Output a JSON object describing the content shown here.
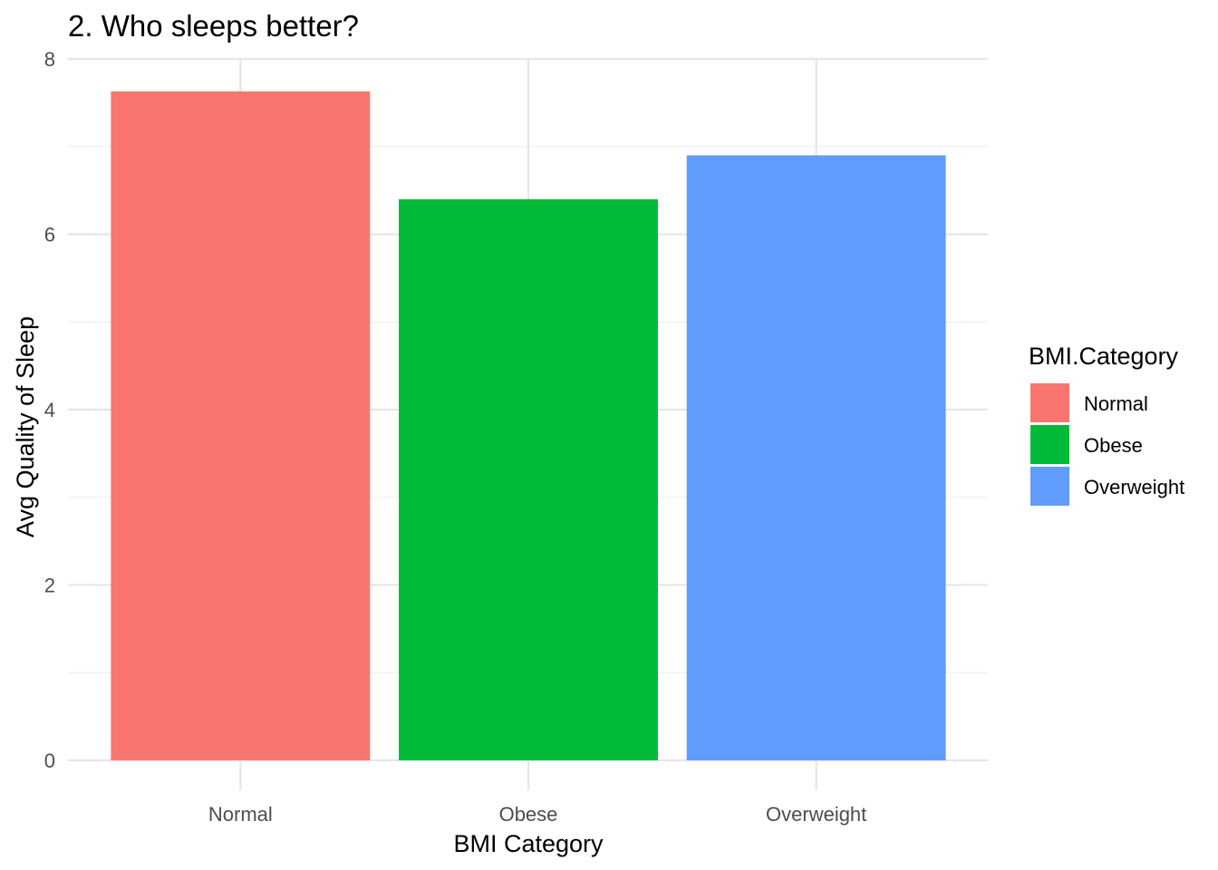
{
  "chart_data": {
    "type": "bar",
    "title": "2. Who sleeps better?",
    "xlabel": "BMI Category",
    "ylabel": "Avg Quality of Sleep",
    "categories": [
      "Normal",
      "Obese",
      "Overweight"
    ],
    "values": [
      7.63,
      6.4,
      6.9
    ],
    "colors": [
      "#F8766D",
      "#00BA38",
      "#619CFF"
    ],
    "ylim": [
      0,
      8
    ],
    "yticks": [
      "0",
      "2",
      "4",
      "6",
      "8"
    ],
    "grid": true,
    "legend": {
      "title": "BMI.Category",
      "position": "right",
      "entries": [
        "Normal",
        "Obese",
        "Overweight"
      ]
    }
  }
}
